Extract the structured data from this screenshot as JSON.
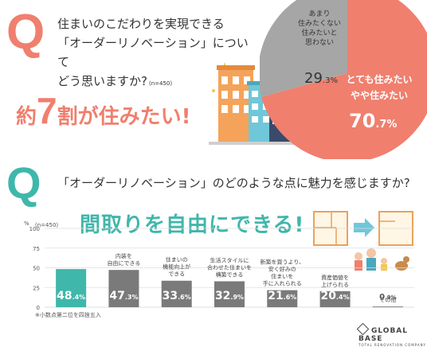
{
  "q1": {
    "mark": "Q",
    "question": "住まいのこだわりを実現できる\n「オーダーリノベーション」について\nどう思いますか?",
    "n": "(n=450)",
    "headline_pre": "約",
    "headline_num": "7",
    "headline_post": "割が住みたい!"
  },
  "pie": {
    "colors": {
      "want": "#f07f6e",
      "not": "#a6a6a6"
    },
    "slices": [
      {
        "key": "want",
        "label_lines": [
          "とても住みたい",
          "やや住みたい"
        ],
        "value": 70.7,
        "int": "70",
        "dec": ".7%"
      },
      {
        "key": "not",
        "label_lines": [
          "あまり",
          "住みたくない",
          "住みたいと",
          "思わない"
        ],
        "value": 29.3,
        "int": "29",
        "dec": ".3%"
      }
    ]
  },
  "q2": {
    "mark": "Q",
    "question": "「オーダーリノベーション」のどのような点に魅力を感じますか?",
    "big_title": "間取りを自由にできる!",
    "note": "※小数点第二位を四捨五入"
  },
  "chart_data": {
    "type": "bar",
    "ylabel": "%",
    "n_label": "(n=450)",
    "ylim": [
      0,
      100
    ],
    "yticks": [
      0,
      25,
      50,
      75,
      100
    ],
    "highlight_color": "#3fb7aa",
    "bar_color": "#7a7a7a",
    "categories": [
      {
        "label_lines": [
          "間取りを",
          "自由にできる"
        ],
        "value": 48.4,
        "int": "48",
        "dec": ".4%"
      },
      {
        "label_lines": [
          "内装を",
          "自由にできる"
        ],
        "value": 47.3,
        "int": "47",
        "dec": ".3%"
      },
      {
        "label_lines": [
          "住まいの",
          "機能向上が",
          "できる"
        ],
        "value": 33.6,
        "int": "33",
        "dec": ".6%"
      },
      {
        "label_lines": [
          "生活スタイルに",
          "合わせた住まいを",
          "構築できる"
        ],
        "value": 32.9,
        "int": "32",
        "dec": ".9%"
      },
      {
        "label_lines": [
          "新築を買うより、",
          "安く好みの",
          "住まいを",
          "手に入れられる"
        ],
        "value": 21.6,
        "int": "21",
        "dec": ".6%"
      },
      {
        "label_lines": [
          "資産価値を",
          "上げられる"
        ],
        "value": 20.4,
        "int": "20",
        "dec": ".4%"
      },
      {
        "label_lines": [
          "その他"
        ],
        "value": 0.9,
        "int": "0",
        "dec": ".9%"
      }
    ]
  },
  "brand": {
    "name": "GLOBAL BASE",
    "tagline": "TOTAL RENOVATION COMPANY"
  }
}
